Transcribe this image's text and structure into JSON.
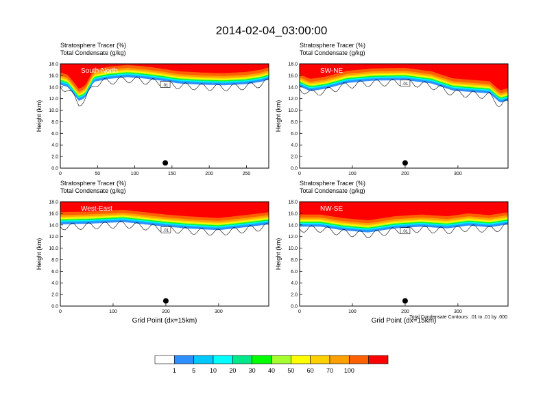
{
  "title": "2014-02-04_03:00:00",
  "colorbar": {
    "levels": [
      "1",
      "5",
      "10",
      "20",
      "30",
      "40",
      "50",
      "60",
      "70",
      "100"
    ],
    "colors": [
      "#ffffff",
      "#2e8fff",
      "#00c8ff",
      "#00ffff",
      "#00e88a",
      "#00ff00",
      "#a6ff2e",
      "#ffff00",
      "#ffd000",
      "#ff9f00",
      "#ff6000",
      "#ff0000"
    ]
  },
  "footnote": "Total Condensate Contours: .01 to .01 by .000",
  "chart_data": [
    {
      "type": "heatmap",
      "header_line1": "Stratosphere Tracer   (%)",
      "header_line2": "Total Condensate   (g/kg)",
      "cross_section": "South-North",
      "contour_label": ".01",
      "ylabel": "Height (km)",
      "xlabel": "",
      "xlim": [
        0,
        280
      ],
      "ylim": [
        0,
        18
      ],
      "xticks": [
        "0",
        "50",
        "100",
        "150",
        "200",
        "250"
      ],
      "yticks": [
        "0.0",
        "2.0",
        "4.0",
        "6.0",
        "8.0",
        "10.0",
        "12.0",
        "14.0",
        "16.0",
        "18.0"
      ],
      "marker_x": 141,
      "tropopause_km": [
        [
          0,
          15.3
        ],
        [
          10,
          14.9
        ],
        [
          25,
          12.5
        ],
        [
          33,
          13.0
        ],
        [
          45,
          15.8
        ],
        [
          65,
          16.3
        ],
        [
          90,
          16.6
        ],
        [
          110,
          16.4
        ],
        [
          135,
          16.0
        ],
        [
          160,
          15.5
        ],
        [
          190,
          15.3
        ],
        [
          220,
          15.2
        ],
        [
          250,
          15.4
        ],
        [
          270,
          15.8
        ],
        [
          280,
          16.2
        ]
      ]
    },
    {
      "type": "heatmap",
      "header_line1": "Stratosphere Tracer   (%)",
      "header_line2": "Total Condensate   (g/kg)",
      "cross_section": "SW-NE",
      "contour_label": ".01",
      "ylabel": "Height (km)",
      "xlabel": "",
      "xlim": [
        0,
        395
      ],
      "ylim": [
        0,
        18
      ],
      "xticks": [
        "0",
        "100",
        "200",
        "300"
      ],
      "yticks": [
        "0.0",
        "2.0",
        "4.0",
        "6.0",
        "8.0",
        "10.0",
        "12.0",
        "14.0",
        "16.0",
        "18.0"
      ],
      "marker_x": 200,
      "tropopause_km": [
        [
          0,
          15.0
        ],
        [
          20,
          14.2
        ],
        [
          50,
          14.6
        ],
        [
          90,
          15.6
        ],
        [
          140,
          16.0
        ],
        [
          200,
          16.1
        ],
        [
          250,
          15.5
        ],
        [
          290,
          14.3
        ],
        [
          330,
          14.0
        ],
        [
          360,
          13.8
        ],
        [
          380,
          12.2
        ],
        [
          395,
          12.6
        ]
      ]
    },
    {
      "type": "heatmap",
      "header_line1": "Stratosphere Tracer   (%)",
      "header_line2": "Total Condensate   (g/kg)",
      "cross_section": "West-East",
      "contour_label": ".01",
      "ylabel": "Height (km)",
      "xlabel": "Grid Point (dx=15km)",
      "xlim": [
        0,
        395
      ],
      "ylim": [
        0,
        18
      ],
      "xticks": [
        "0",
        "100",
        "200",
        "300"
      ],
      "yticks": [
        "0.0",
        "2.0",
        "4.0",
        "6.0",
        "8.0",
        "10.0",
        "12.0",
        "14.0",
        "16.0",
        "18.0"
      ],
      "marker_x": 200,
      "tropopause_km": [
        [
          0,
          15.0
        ],
        [
          50,
          15.1
        ],
        [
          120,
          15.4
        ],
        [
          160,
          15.0
        ],
        [
          200,
          14.6
        ],
        [
          240,
          14.3
        ],
        [
          300,
          14.0
        ],
        [
          350,
          14.5
        ],
        [
          395,
          15.0
        ]
      ]
    },
    {
      "type": "heatmap",
      "header_line1": "Stratosphere Tracer   (%)",
      "header_line2": "Total Condensate   (g/kg)",
      "cross_section": "NW-SE",
      "contour_label": ".01",
      "ylabel": "Height (km)",
      "xlabel": "Grid Point (dx=15km)",
      "xlim": [
        0,
        395
      ],
      "ylim": [
        0,
        18
      ],
      "xticks": [
        "0",
        "100",
        "200",
        "300"
      ],
      "yticks": [
        "0.0",
        "2.0",
        "4.0",
        "6.0",
        "8.0",
        "10.0",
        "12.0",
        "14.0",
        "16.0",
        "18.0"
      ],
      "marker_x": 200,
      "tropopause_km": [
        [
          0,
          14.6
        ],
        [
          40,
          14.6
        ],
        [
          80,
          14.0
        ],
        [
          130,
          13.6
        ],
        [
          180,
          14.3
        ],
        [
          230,
          14.6
        ],
        [
          280,
          14.3
        ],
        [
          320,
          14.8
        ],
        [
          360,
          14.5
        ],
        [
          395,
          15.0
        ]
      ]
    }
  ]
}
